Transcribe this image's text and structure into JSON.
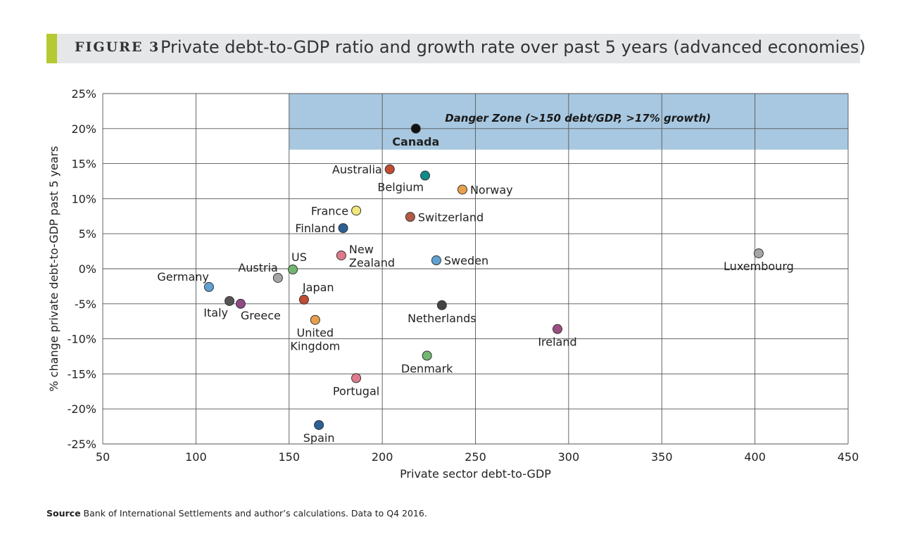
{
  "header": {
    "figure_label": "FIGURE 3",
    "title": "Private debt-to-GDP ratio and growth rate over past 5 years (advanced economies)"
  },
  "chart_data": {
    "type": "scatter",
    "title": "Private debt-to-GDP ratio and growth rate over past 5 years (advanced economies)",
    "xlabel": "Private sector debt-to-GDP",
    "ylabel": "% change private debt-to-GDP past 5 years",
    "xlim": [
      50,
      450
    ],
    "ylim": [
      -25,
      25
    ],
    "x_ticks": [
      50,
      100,
      150,
      200,
      250,
      300,
      350,
      400,
      450
    ],
    "y_ticks": [
      25,
      20,
      15,
      10,
      5,
      0,
      -5,
      -10,
      -15,
      -20,
      -25
    ],
    "y_tick_labels": [
      "25%",
      "20%",
      "15%",
      "10%",
      "5%",
      "0%",
      "-5%",
      "-10%",
      "-15%",
      "-20%",
      "-25%"
    ],
    "grid": true,
    "danger_zone": {
      "label": "Danger Zone (>150 debt/GDP, >17% growth)",
      "x_min": 150,
      "x_max": 450,
      "y_min": 17,
      "y_max": 25,
      "color": "#a8c8e1"
    },
    "points": [
      {
        "label": "Canada",
        "lines": [
          "Canada"
        ],
        "x": 218,
        "y": 20,
        "color": "#111111",
        "bold": true,
        "pos": "below"
      },
      {
        "label": "Australia",
        "lines": [
          "Australia"
        ],
        "x": 204,
        "y": 14.2,
        "color": "#c24b33",
        "pos": "left"
      },
      {
        "label": "Belgium",
        "lines": [
          "Belgium"
        ],
        "x": 223,
        "y": 13.3,
        "color": "#0f8a8a",
        "pos": "below-left"
      },
      {
        "label": "Norway",
        "lines": [
          "Norway"
        ],
        "x": 243,
        "y": 11.3,
        "color": "#e8a04c",
        "pos": "right"
      },
      {
        "label": "France",
        "lines": [
          "France"
        ],
        "x": 186,
        "y": 8.3,
        "color": "#f2e77a",
        "pos": "left"
      },
      {
        "label": "Switzerland",
        "lines": [
          "Switzerland"
        ],
        "x": 215,
        "y": 7.4,
        "color": "#b25a45",
        "pos": "right"
      },
      {
        "label": "Finland",
        "lines": [
          "Finland"
        ],
        "x": 179,
        "y": 5.8,
        "color": "#2c5f95",
        "pos": "left"
      },
      {
        "label": "New Zealand",
        "lines": [
          "New",
          "Zealand"
        ],
        "x": 178,
        "y": 1.9,
        "color": "#e07a8b",
        "pos": "right-up"
      },
      {
        "label": "Sweden",
        "lines": [
          "Sweden"
        ],
        "x": 229,
        "y": 1.2,
        "color": "#5fa1d2",
        "pos": "right"
      },
      {
        "label": "US",
        "lines": [
          "US"
        ],
        "x": 152,
        "y": -0.1,
        "color": "#72b672",
        "pos": "above-right"
      },
      {
        "label": "Austria",
        "lines": [
          "Austria"
        ],
        "x": 144,
        "y": -1.3,
        "color": "#a4a6a8",
        "pos": "above-left"
      },
      {
        "label": "Germany",
        "lines": [
          "Germany"
        ],
        "x": 107,
        "y": -2.6,
        "color": "#5fa1d2",
        "pos": "above-left"
      },
      {
        "label": "Luxembourg",
        "lines": [
          "Luxembourg"
        ],
        "x": 402,
        "y": 2.2,
        "color": "#a4a6a8",
        "pos": "below"
      },
      {
        "label": "Japan",
        "lines": [
          "Japan"
        ],
        "x": 158,
        "y": -4.4,
        "color": "#c24b33",
        "pos": "above-right"
      },
      {
        "label": "Italy",
        "lines": [
          "Italy"
        ],
        "x": 118,
        "y": -4.6,
        "color": "#555555",
        "pos": "below-left"
      },
      {
        "label": "Greece",
        "lines": [
          "Greece"
        ],
        "x": 124,
        "y": -5,
        "color": "#8e4a86",
        "pos": "below-right"
      },
      {
        "label": "Netherlands",
        "lines": [
          "Netherlands"
        ],
        "x": 232,
        "y": -5.2,
        "color": "#444444",
        "pos": "below"
      },
      {
        "label": "United Kingdom",
        "lines": [
          "United",
          "Kingdom"
        ],
        "x": 164,
        "y": -7.3,
        "color": "#e8a04c",
        "pos": "below"
      },
      {
        "label": "Ireland",
        "lines": [
          "Ireland"
        ],
        "x": 294,
        "y": -8.6,
        "color": "#9c4f7f",
        "pos": "below"
      },
      {
        "label": "Denmark",
        "lines": [
          "Denmark"
        ],
        "x": 224,
        "y": -12.4,
        "color": "#72b672",
        "pos": "below"
      },
      {
        "label": "Portugal",
        "lines": [
          "Portugal"
        ],
        "x": 186,
        "y": -15.6,
        "color": "#e07a8b",
        "pos": "below"
      },
      {
        "label": "Spain",
        "lines": [
          "Spain"
        ],
        "x": 166,
        "y": -22.3,
        "color": "#2c5f95",
        "pos": "below"
      }
    ]
  },
  "footer": {
    "source_label": "Source",
    "source_text": "Bank of International Settlements and author’s calculations. Data to Q4 2016."
  }
}
